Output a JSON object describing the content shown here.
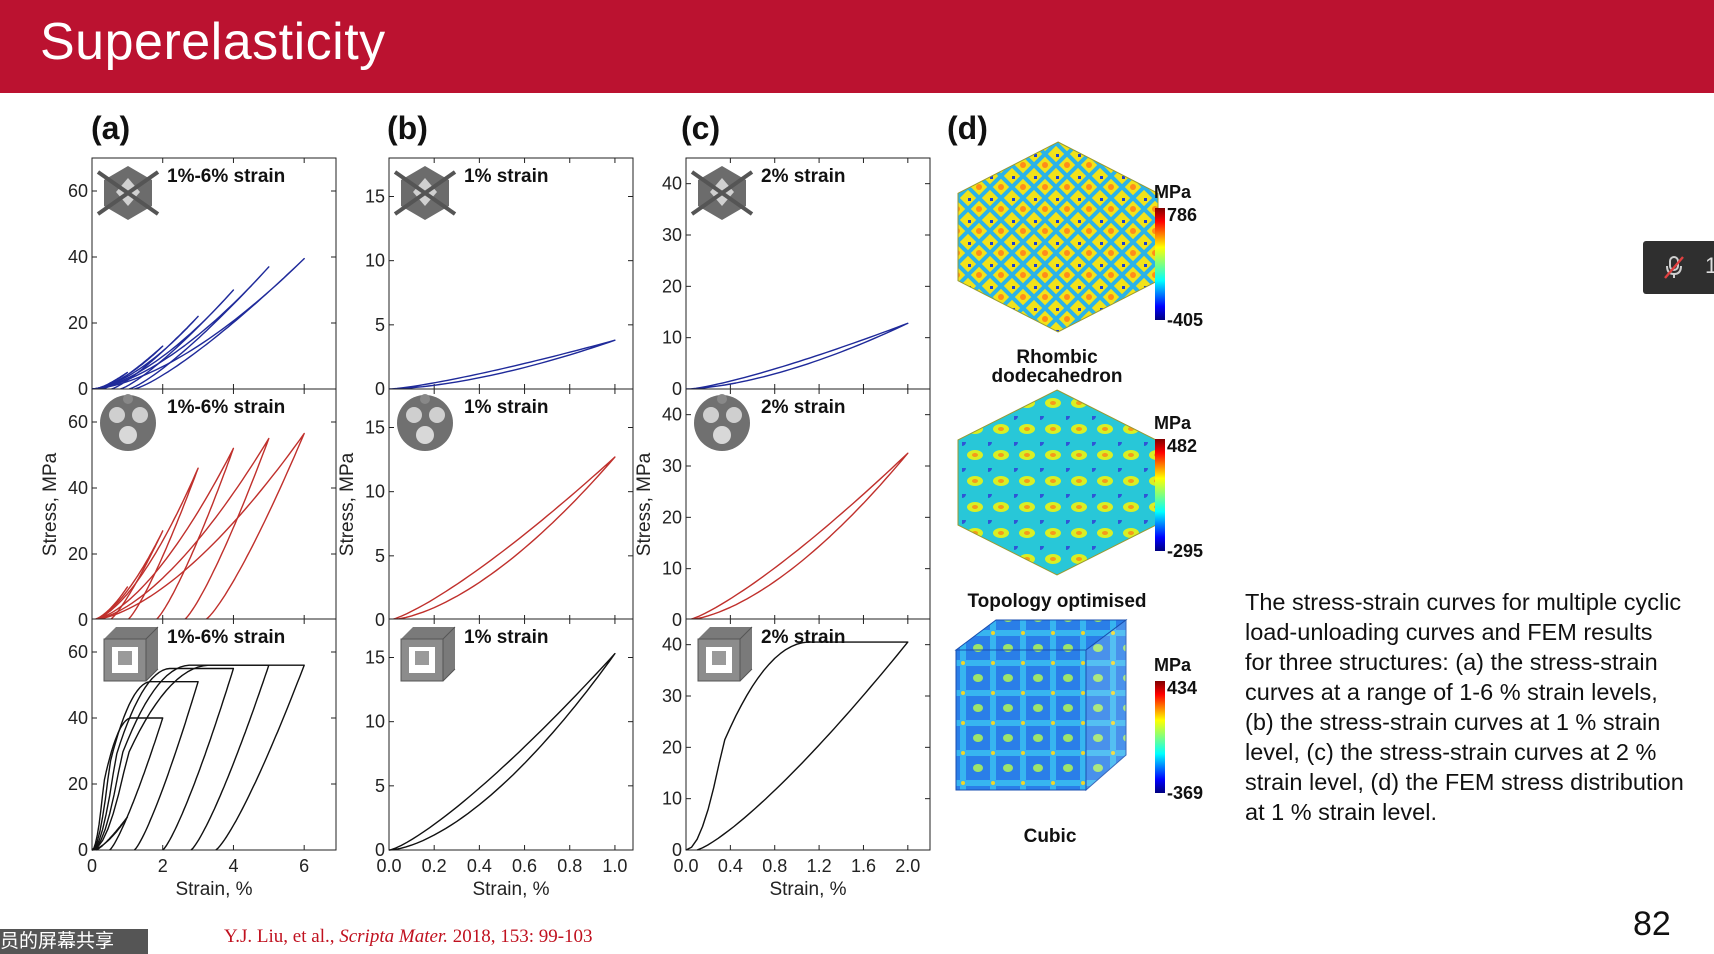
{
  "slide": {
    "title": "Superelasticity",
    "page_number": "82",
    "citation": {
      "authors": "Y.J. Liu, et al.,",
      "journal": "Scripta Mater.",
      "details": "2018, 153: 99-103"
    },
    "caption": "The stress-strain curves for multiple cyclic load-unloading curves and FEM results for three structures: (a) the stress-strain curves at a range of 1-6 % strain levels, (b) the stress-strain curves at 1 % strain level, (c) the stress-strain curves at 2 % strain level, (d) the FEM stress distribution at 1 % strain level."
  },
  "overlay": {
    "share_banner": "员的屏幕共享",
    "side_widget_text": "1",
    "mic_icon": "muted-microphone-icon"
  },
  "panels": {
    "a": "(a)",
    "b": "(b)",
    "c": "(c)",
    "d": "(d)"
  },
  "colors": {
    "title_bar": "#bb1230",
    "series_rhombic": "#1f2a9a",
    "series_topology": "#c0302c",
    "series_cubic": "#111111",
    "citation": "#c0111f"
  },
  "chart_data": [
    {
      "type": "line",
      "panel": "(a)",
      "xlabel": "Strain, %",
      "ylabel": "Stress, MPa",
      "xticks": [
        "0",
        "2",
        "4",
        "6"
      ],
      "xlim": [
        0,
        6.9
      ],
      "rows": [
        {
          "annotation": "1%-6% strain",
          "structure_icon": "rhombic-dodecahedron-icon",
          "color": "#1f2a9a",
          "ylim": [
            0,
            70
          ],
          "yticks": [
            "0",
            "20",
            "40",
            "60"
          ],
          "cycles": [
            {
              "max_strain": 1,
              "peak_stress": 5,
              "residual_strain": 0.12
            },
            {
              "max_strain": 2,
              "peak_stress": 13,
              "residual_strain": 0.3
            },
            {
              "max_strain": 3,
              "peak_stress": 22,
              "residual_strain": 0.55
            },
            {
              "max_strain": 4,
              "peak_stress": 30,
              "residual_strain": 0.8
            },
            {
              "max_strain": 5,
              "peak_stress": 37,
              "residual_strain": 1.05
            },
            {
              "max_strain": 6,
              "peak_stress": 39.5,
              "residual_strain": 1.2
            }
          ]
        },
        {
          "annotation": "1%-6% strain",
          "structure_icon": "topology-optimised-icon",
          "color": "#c0302c",
          "ylim": [
            0,
            70
          ],
          "yticks": [
            "0",
            "20",
            "40",
            "60"
          ],
          "cycles": [
            {
              "max_strain": 1,
              "peak_stress": 10,
              "residual_strain": 0.2
            },
            {
              "max_strain": 2,
              "peak_stress": 27,
              "residual_strain": 0.5
            },
            {
              "max_strain": 3,
              "peak_stress": 46,
              "residual_strain": 1.0
            },
            {
              "max_strain": 4,
              "peak_stress": 52,
              "residual_strain": 1.8
            },
            {
              "max_strain": 5,
              "peak_stress": 55,
              "residual_strain": 2.6
            },
            {
              "max_strain": 6,
              "peak_stress": 56.5,
              "residual_strain": 3.2
            }
          ]
        },
        {
          "annotation": "1%-6% strain",
          "structure_icon": "cubic-lattice-icon",
          "color": "#111111",
          "ylim": [
            0,
            70
          ],
          "yticks": [
            "0",
            "20",
            "40",
            "60"
          ],
          "cycles": [
            {
              "max_strain": 1,
              "peak_stress": 10,
              "residual_strain": 0.12
            },
            {
              "max_strain": 2,
              "peak_stress": 40,
              "residual_strain": 0.5
            },
            {
              "max_strain": 3,
              "peak_stress": 51,
              "residual_strain": 1.2
            },
            {
              "max_strain": 4,
              "peak_stress": 55,
              "residual_strain": 2.0
            },
            {
              "max_strain": 5,
              "peak_stress": 56,
              "residual_strain": 2.8
            },
            {
              "max_strain": 6,
              "peak_stress": 56,
              "residual_strain": 3.5
            }
          ]
        }
      ]
    },
    {
      "type": "line",
      "panel": "(b)",
      "xlabel": "Strain, %",
      "ylabel": "Stress, MPa",
      "xticks": [
        "0.0",
        "0.2",
        "0.4",
        "0.6",
        "0.8",
        "1.0"
      ],
      "xlim": [
        0,
        1.08
      ],
      "rows": [
        {
          "annotation": "1% strain",
          "structure_icon": "rhombic-dodecahedron-icon",
          "color": "#1f2a9a",
          "ylim": [
            0,
            18
          ],
          "yticks": [
            "0",
            "5",
            "10",
            "15"
          ],
          "cycles": [
            {
              "max_strain": 1.0,
              "peak_stress": 3.8,
              "residual_strain": 0.01
            }
          ]
        },
        {
          "annotation": "1% strain",
          "structure_icon": "topology-optimised-icon",
          "color": "#c0302c",
          "ylim": [
            0,
            18
          ],
          "yticks": [
            "0",
            "5",
            "10",
            "15"
          ],
          "cycles": [
            {
              "max_strain": 1.0,
              "peak_stress": 12.7,
              "residual_strain": 0.005
            }
          ]
        },
        {
          "annotation": "1% strain",
          "structure_icon": "cubic-lattice-icon",
          "color": "#111111",
          "ylim": [
            0,
            18
          ],
          "yticks": [
            "0",
            "5",
            "10",
            "15"
          ],
          "cycles": [
            {
              "max_strain": 1.0,
              "peak_stress": 15.3,
              "residual_strain": 0.005
            }
          ]
        }
      ]
    },
    {
      "type": "line",
      "panel": "(c)",
      "xlabel": "Strain, %",
      "ylabel": "Stress, MPa",
      "xticks": [
        "0.0",
        "0.4",
        "0.8",
        "1.2",
        "1.6",
        "2.0"
      ],
      "xlim": [
        0,
        2.2
      ],
      "rows": [
        {
          "annotation": "2% strain",
          "structure_icon": "rhombic-dodecahedron-icon",
          "color": "#1f2a9a",
          "ylim": [
            0,
            45
          ],
          "yticks": [
            "0",
            "10",
            "20",
            "30",
            "40"
          ],
          "cycles": [
            {
              "max_strain": 2.0,
              "peak_stress": 12.8,
              "residual_strain": 0.04
            }
          ]
        },
        {
          "annotation": "2% strain",
          "structure_icon": "topology-optimised-icon",
          "color": "#c0302c",
          "ylim": [
            0,
            45
          ],
          "yticks": [
            "0",
            "10",
            "20",
            "30",
            "40"
          ],
          "cycles": [
            {
              "max_strain": 2.0,
              "peak_stress": 32.5,
              "residual_strain": 0.02
            }
          ]
        },
        {
          "annotation": "2% strain",
          "structure_icon": "cubic-lattice-icon",
          "color": "#111111",
          "ylim": [
            0,
            45
          ],
          "yticks": [
            "0",
            "10",
            "20",
            "30",
            "40"
          ],
          "cycles": [
            {
              "max_strain": 2.0,
              "peak_stress": 40.5,
              "residual_strain": 0.1
            }
          ]
        }
      ]
    },
    {
      "type": "heatmap",
      "panel": "(d)",
      "colormap": "jet",
      "structures": [
        {
          "name": "Rhombic\ndodecahedron",
          "unit": "MPa",
          "max": "786",
          "min": "-405"
        },
        {
          "name": "Topology optimised",
          "unit": "MPa",
          "max": "482",
          "min": "-295"
        },
        {
          "name": "Cubic",
          "unit": "MPa",
          "max": "434",
          "min": "-369"
        }
      ]
    }
  ]
}
